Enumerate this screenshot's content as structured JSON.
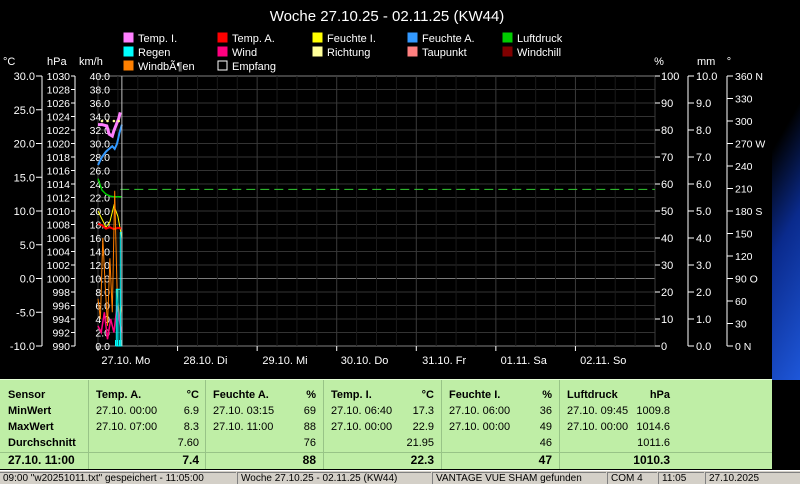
{
  "chart_data": {
    "type": "line",
    "title": "Woche 27.10.25 - 02.11.25 (KW44)",
    "legend": [
      {
        "name": "Temp. I.",
        "color": "#ff80ff"
      },
      {
        "name": "Temp. A.",
        "color": "#ff0000"
      },
      {
        "name": "Feuchte I.",
        "color": "#ffff00"
      },
      {
        "name": "Feuchte A.",
        "color": "#3399ff"
      },
      {
        "name": "Luftdruck",
        "color": "#00cc00"
      },
      {
        "name": "Regen",
        "color": "#00ffff"
      },
      {
        "name": "Wind",
        "color": "#ff0080"
      },
      {
        "name": "Richtung",
        "color": "#ffff99"
      },
      {
        "name": "Taupunkt",
        "color": "#ff8080"
      },
      {
        "name": "Windchill",
        "color": "#800000"
      },
      {
        "name": "WindbÃ¶en",
        "color": "#ff8000"
      },
      {
        "name": "Empfang",
        "color": "#000000"
      }
    ],
    "axes": {
      "temp": {
        "unit": "°C",
        "ticks": [
          "30.0",
          "25.0",
          "20.0",
          "15.0",
          "10.0",
          "5.0",
          "0.0",
          "-5.0",
          "-10.0"
        ]
      },
      "pressure": {
        "unit": "hPa",
        "ticks": [
          "1030",
          "1028",
          "1026",
          "1024",
          "1022",
          "1020",
          "1018",
          "1016",
          "1014",
          "1012",
          "1010",
          "1008",
          "1006",
          "1004",
          "1002",
          "1000",
          "998",
          "996",
          "994",
          "992",
          "990"
        ]
      },
      "wind": {
        "unit": "km/h",
        "ticks": [
          "40.0",
          "38.0",
          "36.0",
          "34.0",
          "32.0",
          "30.0",
          "28.0",
          "26.0",
          "24.0",
          "22.0",
          "20.0",
          "18.0",
          "16.0",
          "14.0",
          "12.0",
          "10.0",
          "8.0",
          "6.0",
          "4.0",
          "2.0",
          "0.0"
        ]
      },
      "humidity": {
        "unit": "%",
        "ticks": [
          "100",
          "90",
          "80",
          "70",
          "60",
          "50",
          "40",
          "30",
          "20",
          "10",
          "0"
        ]
      },
      "rain": {
        "unit": "mm",
        "ticks": [
          "10.0",
          "9.0",
          "8.0",
          "7.0",
          "6.0",
          "5.0",
          "4.0",
          "3.0",
          "2.0",
          "1.0",
          "0.0"
        ]
      },
      "direction": {
        "unit": "°",
        "ticks": [
          "360 N",
          "330",
          "300",
          "270 W",
          "240",
          "210",
          "180 S",
          "150",
          "120",
          "90  O",
          "60",
          "30",
          "0   N"
        ]
      }
    },
    "x_labels": [
      "27.10.  Mo",
      "28.10.  Di",
      "29.10.  Mi",
      "30.10.  Do",
      "31.10.  Fr",
      "01.11.  Sa",
      "02.11.  So"
    ],
    "grid": true,
    "reference_line": {
      "axis": "humidity",
      "value": 58,
      "color": "#33cc33"
    },
    "series_points": {
      "temp_inside": [
        [
          0.0,
          22.8
        ],
        [
          0.05,
          22.8
        ],
        [
          0.11,
          22.6
        ],
        [
          0.14,
          21.4
        ],
        [
          0.18,
          21.1
        ],
        [
          0.2,
          21.9
        ],
        [
          0.23,
          22.8
        ],
        [
          0.26,
          23.7
        ],
        [
          0.28,
          24.6
        ]
      ],
      "humidity_outside": [
        [
          0.0,
          67
        ],
        [
          0.05,
          70
        ],
        [
          0.1,
          72
        ],
        [
          0.14,
          73
        ],
        [
          0.18,
          74
        ],
        [
          0.21,
          73
        ],
        [
          0.24,
          75
        ],
        [
          0.27,
          79
        ],
        [
          0.3,
          82
        ]
      ],
      "pressure": [
        [
          0.0,
          1014.8
        ],
        [
          0.05,
          1013.1
        ],
        [
          0.1,
          1012.5
        ],
        [
          0.15,
          1012.2
        ],
        [
          0.2,
          1012.1
        ],
        [
          0.25,
          1012.1
        ],
        [
          0.3,
          1012.1
        ]
      ],
      "temp_outside": [
        [
          0.0,
          8.1
        ],
        [
          0.05,
          7.9
        ],
        [
          0.1,
          7.4
        ],
        [
          0.15,
          7.6
        ],
        [
          0.2,
          7.3
        ],
        [
          0.25,
          7.5
        ],
        [
          0.3,
          7.4
        ]
      ],
      "humidity_inside": [
        [
          0.0,
          50
        ],
        [
          0.05,
          47
        ],
        [
          0.1,
          44
        ],
        [
          0.15,
          46
        ],
        [
          0.2,
          52
        ],
        [
          0.25,
          48
        ],
        [
          0.3,
          40
        ]
      ],
      "wind_gust": [
        [
          0.0,
          7
        ],
        [
          0.03,
          4
        ],
        [
          0.06,
          16
        ],
        [
          0.09,
          9
        ],
        [
          0.12,
          3
        ],
        [
          0.15,
          13
        ],
        [
          0.18,
          5
        ],
        [
          0.21,
          23
        ],
        [
          0.24,
          8
        ],
        [
          0.27,
          4
        ],
        [
          0.3,
          6
        ]
      ],
      "wind": [
        [
          0.0,
          3
        ],
        [
          0.04,
          2
        ],
        [
          0.08,
          5
        ],
        [
          0.12,
          1
        ],
        [
          0.16,
          4
        ],
        [
          0.2,
          2
        ],
        [
          0.24,
          6
        ],
        [
          0.28,
          3
        ],
        [
          0.3,
          2
        ]
      ],
      "rain": [
        [
          0.22,
          0
        ],
        [
          0.23,
          2.1
        ],
        [
          0.25,
          2.1
        ],
        [
          0.28,
          4.2
        ],
        [
          0.3,
          4.2
        ]
      ],
      "direction": [
        [
          0.05,
          300
        ],
        [
          0.12,
          300
        ],
        [
          0.2,
          300
        ],
        [
          0.26,
          300
        ]
      ]
    }
  },
  "stats": {
    "header": {
      "sensor": "Sensor"
    },
    "row_labels": {
      "min": "MinWert",
      "max": "MaxWert",
      "avg": "Durchschnitt",
      "current": "27.10. 11:00"
    },
    "columns": [
      {
        "title": "Temp. A.",
        "unit": "°C",
        "min_time": "27.10.  00:00",
        "min": "6.9",
        "max_time": "27.10.  07:00",
        "max": "8.3",
        "avg": "7.60",
        "current": "7.4"
      },
      {
        "title": "Feuchte A.",
        "unit": "%",
        "min_time": "27.10.  03:15",
        "min": "69",
        "max_time": "27.10.  11:00",
        "max": "88",
        "avg": "76",
        "current": "88"
      },
      {
        "title": "Temp. I.",
        "unit": "°C",
        "min_time": "27.10.  06:40",
        "min": "17.3",
        "max_time": "27.10.  00:00",
        "max": "22.9",
        "avg": "21.95",
        "current": "22.3"
      },
      {
        "title": "Feuchte I.",
        "unit": "%",
        "min_time": "27.10.  06:00",
        "min": "36",
        "max_time": "27.10.  00:00",
        "max": "49",
        "avg": "46",
        "current": "47"
      },
      {
        "title": "Luftdruck",
        "unit": "hPa",
        "min_time": "27.10.  09:45",
        "min": "1009.8",
        "max_time": "27.10.  00:00",
        "max": "1014.6",
        "avg": "1011.6",
        "current": "1010.3"
      }
    ]
  },
  "statusbar": {
    "file": "09:00  \"w20251011.txt\" gespeichert - 11:05:00",
    "range": "Woche 27.10.25 - 02.11.25 (KW44)",
    "station": "VANTAGE VUE  SHAM gefunden",
    "port": "COM 4",
    "time": "11:05",
    "date": "27.10.2025"
  }
}
